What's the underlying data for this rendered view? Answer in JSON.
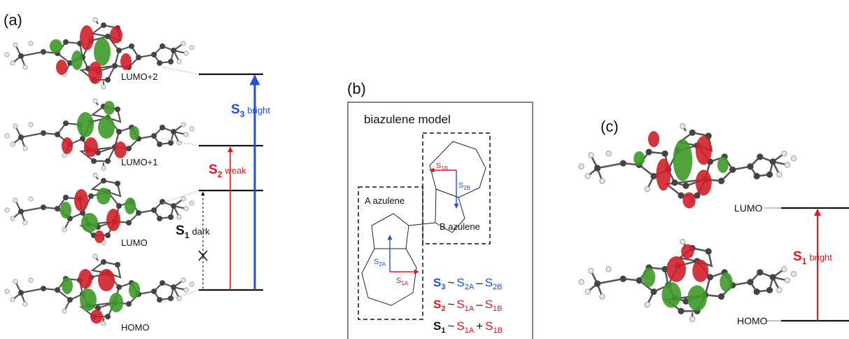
{
  "panels": {
    "a": {
      "label": "(a)",
      "orbitals": [
        "LUMO+2",
        "LUMO+1",
        "LUMO",
        "HOMO"
      ],
      "transitions": {
        "s3": {
          "state": "S",
          "sub": "3",
          "desc": "bright"
        },
        "s2": {
          "state": "S",
          "sub": "2",
          "desc": "weak"
        },
        "s1": {
          "state": "S",
          "sub": "1",
          "desc": "dark"
        }
      }
    },
    "b": {
      "label": "(b)",
      "title": "biazulene model",
      "box_a": "A azulene",
      "box_b": "B azulene",
      "vectors": {
        "s1b": {
          "main": "S",
          "sub": "1B"
        },
        "s2b": {
          "main": "S",
          "sub": "2B"
        },
        "s2a": {
          "main": "S",
          "sub": "2A"
        },
        "s1a": {
          "main": "S",
          "sub": "1A"
        }
      },
      "equations": {
        "eq3": {
          "lhs": "S",
          "lhs_sub": "3",
          "op1": "~",
          "t1": "S",
          "t1_sub": "2A",
          "op2": "–",
          "t2": "S",
          "t2_sub": "2B"
        },
        "eq2": {
          "lhs": "S",
          "lhs_sub": "2",
          "op1": "~",
          "t1": "S",
          "t1_sub": "1A",
          "op2": "–",
          "t2": "S",
          "t2_sub": "1B"
        },
        "eq1": {
          "lhs": "S",
          "lhs_sub": "1",
          "op1": "~",
          "t1": "S",
          "t1_sub": "1A",
          "op2": "+",
          "t2": "S",
          "t2_sub": "1B"
        }
      }
    },
    "c": {
      "label": "(c)",
      "orbitals": [
        "LUMO",
        "HOMO"
      ],
      "transition": {
        "state": "S",
        "sub": "1",
        "desc": "bright"
      }
    }
  },
  "colors": {
    "blue": "#1f4fe0",
    "red": "#e8141c",
    "black": "#111111",
    "lobe_red": "#d0202a",
    "lobe_green": "#3f9a2a"
  }
}
